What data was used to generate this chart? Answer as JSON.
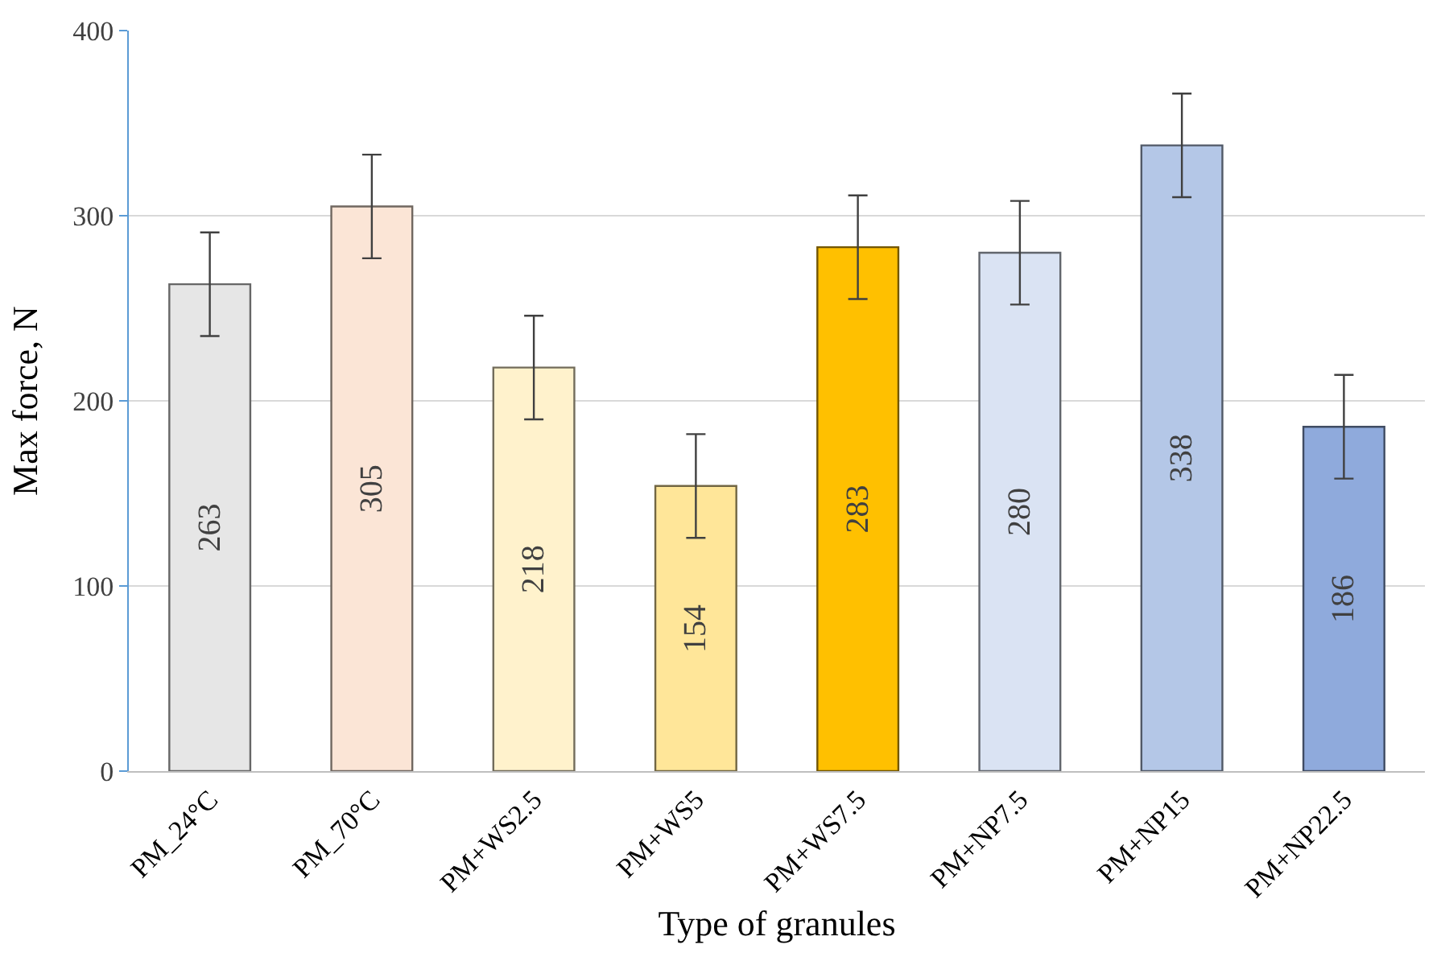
{
  "chart_data": {
    "type": "bar",
    "xlabel": "Type of granules",
    "ylabel": "Max force, N",
    "categories": [
      "PM_24°C",
      "PM_70°C",
      "PM+WS2.5",
      "PM+WS5",
      "PM+WS7.5",
      "PM+NP7.5",
      "PM+NP15",
      "PM+NP22.5"
    ],
    "values": [
      263,
      305,
      218,
      154,
      283,
      280,
      338,
      186
    ],
    "colors": [
      "#e6e6e6",
      "#fbe5d6",
      "#fff2cc",
      "#ffe699",
      "#ffc000",
      "#dae3f3",
      "#b4c7e7",
      "#8faadc"
    ],
    "errors": [
      28,
      28,
      28,
      28,
      28,
      28,
      28,
      28
    ],
    "ylim": [
      0,
      400
    ],
    "yticks": [
      0,
      100,
      200,
      300,
      400
    ],
    "grid": "y",
    "data_labels": true
  }
}
